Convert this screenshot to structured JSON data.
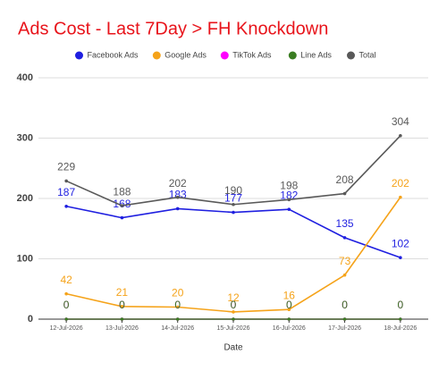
{
  "chart_data": {
    "type": "line",
    "title": "Ads Cost - Last 7Day > FH Knockdown",
    "x_label": "Date",
    "categories": [
      "12-Jul-2026",
      "13-Jul-2026",
      "14-Jul-2026",
      "15-Jul-2026",
      "16-Jul-2026",
      "17-Jul-2026",
      "18-Jul-2026"
    ],
    "series": [
      {
        "name": "Facebook Ads",
        "color": "#1f1fe0",
        "values": [
          187,
          168,
          183,
          177,
          182,
          135,
          102
        ]
      },
      {
        "name": "Google Ads",
        "color": "#f5a31a",
        "values": [
          42,
          21,
          20,
          12,
          16,
          73,
          202
        ]
      },
      {
        "name": "TikTok Ads",
        "color": "#ff00ff",
        "values": [
          0,
          0,
          0,
          0,
          0,
          0,
          0
        ]
      },
      {
        "name": "Line Ads",
        "color": "#3a7d22",
        "values": [
          0,
          0,
          0,
          0,
          0,
          0,
          0
        ]
      },
      {
        "name": "Total",
        "color": "#595959",
        "values": [
          229,
          188,
          202,
          190,
          198,
          208,
          304
        ]
      }
    ],
    "ylim": [
      0,
      400
    ],
    "yticks": [
      0,
      100,
      200,
      300,
      400
    ],
    "grid": true,
    "legend": "top"
  }
}
